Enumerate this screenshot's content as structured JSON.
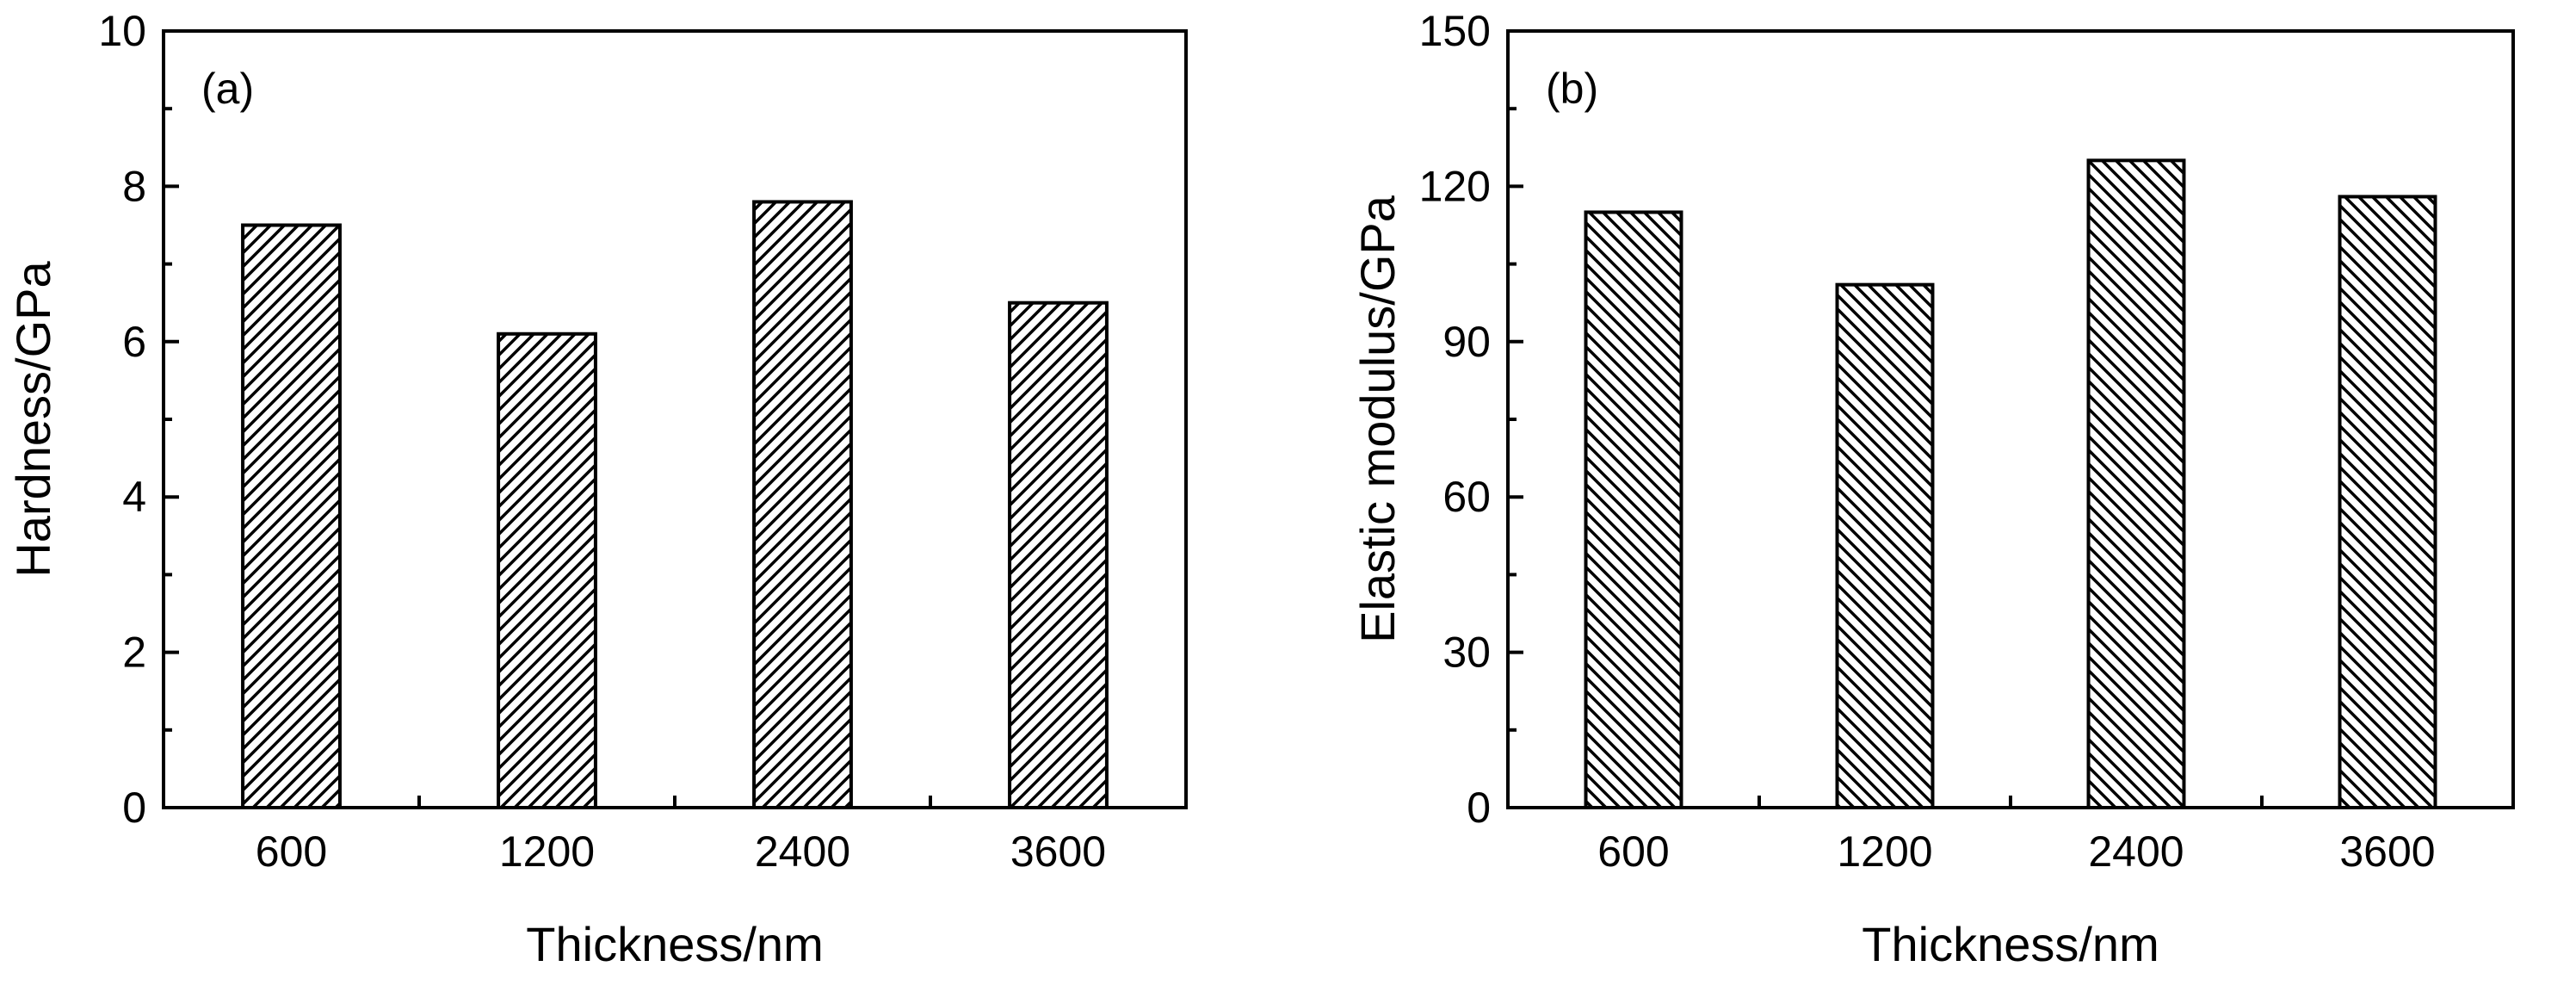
{
  "chart_data": [
    {
      "type": "bar",
      "panel_label": "(a)",
      "categories": [
        "600",
        "1200",
        "2400",
        "3600"
      ],
      "values": [
        7.5,
        6.1,
        7.8,
        6.5
      ],
      "xlabel": "Thickness/nm",
      "ylabel": "Hardness/GPa",
      "ylim": [
        0,
        10
      ],
      "yticks": [
        "0",
        "2",
        "4",
        "6",
        "8",
        "10"
      ],
      "grid": false,
      "hatch": "forward-diagonal",
      "bar_color": "#ffffff",
      "line_color": "#000000"
    },
    {
      "type": "bar",
      "panel_label": "(b)",
      "categories": [
        "600",
        "1200",
        "2400",
        "3600"
      ],
      "values": [
        115,
        101,
        125,
        118
      ],
      "xlabel": "Thickness/nm",
      "ylabel": "Elastic modulus/GPa",
      "ylim": [
        0,
        150
      ],
      "yticks": [
        "0",
        "30",
        "60",
        "90",
        "120",
        "150"
      ],
      "grid": false,
      "hatch": "back-diagonal",
      "bar_color": "#ffffff",
      "line_color": "#000000"
    }
  ]
}
